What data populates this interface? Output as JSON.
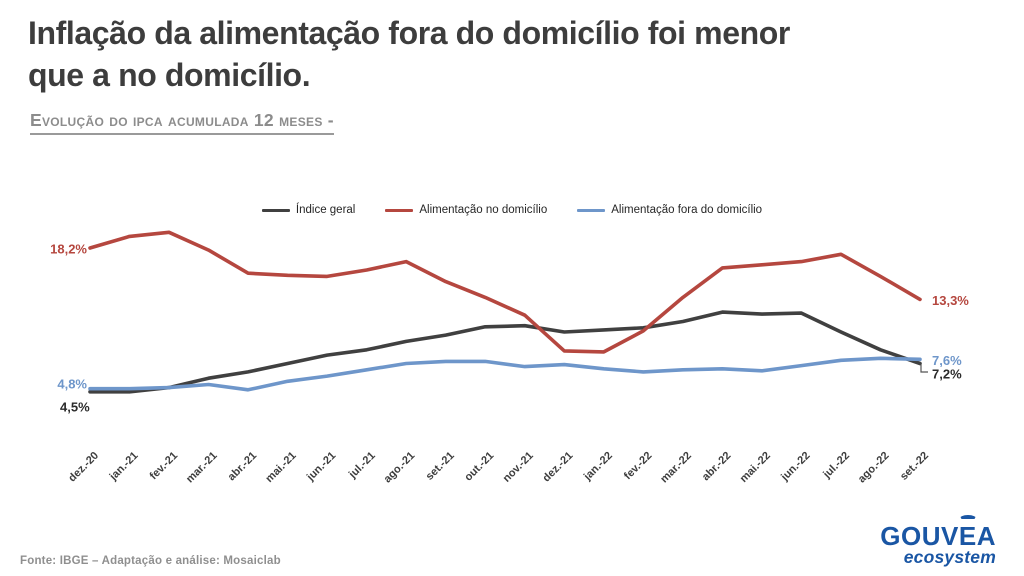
{
  "page": {
    "title_line1": "Inflação da alimentação fora do domicílio foi menor",
    "title_line2": "que a no domicílio.",
    "subtitle": "Evolução do ipca acumulada 12 meses -",
    "footer": "Fonte: IBGE – Adaptação e análise: Mosaiclab",
    "logo": {
      "part1": "GOUV",
      "letter_e": "E",
      "part2": "A",
      "tagline": "ecosystem",
      "color": "#1a56a4"
    }
  },
  "chart_data": {
    "type": "line",
    "title": "Evolução do IPCA acumulada 12 meses",
    "unit": "%",
    "grid": false,
    "axes_drawn": false,
    "legend_position": "top",
    "ylim": [
      4,
      20
    ],
    "categories": [
      "dez.-20",
      "jan.-21",
      "fev.-21",
      "mar.-21",
      "abr.-21",
      "mai.-21",
      "jun.-21",
      "jul.-21",
      "ago.-21",
      "set.-21",
      "out.-21",
      "nov.-21",
      "dez.-21",
      "jan.-22",
      "fev.-22",
      "mar.-22",
      "abr.-22",
      "mai.-22",
      "jun.-22",
      "jul.-22",
      "ago.-22",
      "set.-22"
    ],
    "series": [
      {
        "name": "Índice geral",
        "color": "#404040",
        "values": [
          4.5,
          4.5,
          4.9,
          5.8,
          6.4,
          7.2,
          8.0,
          8.5,
          9.3,
          9.9,
          10.7,
          10.8,
          10.2,
          10.4,
          10.6,
          11.2,
          12.1,
          11.9,
          12.0,
          10.2,
          8.5,
          7.2
        ],
        "first_label": "4,5%",
        "last_label": "7,2%"
      },
      {
        "name": "Alimentação no domicílio",
        "color": "#b5473f",
        "values": [
          18.2,
          19.3,
          19.7,
          18.0,
          15.8,
          15.6,
          15.5,
          16.1,
          16.9,
          15.0,
          13.5,
          11.8,
          8.4,
          8.3,
          10.3,
          13.5,
          16.3,
          16.6,
          16.9,
          17.6,
          15.5,
          13.3
        ],
        "first_label": "18,2%",
        "last_label": "13,3%"
      },
      {
        "name": "Alimentação fora do domicílio",
        "color": "#6e96ca",
        "values": [
          4.8,
          4.8,
          4.9,
          5.2,
          4.7,
          5.5,
          6.0,
          6.6,
          7.2,
          7.4,
          7.4,
          6.9,
          7.1,
          6.7,
          6.4,
          6.6,
          6.7,
          6.5,
          7.0,
          7.5,
          7.7,
          7.6
        ],
        "first_label": "4,8%",
        "last_label": "7,6%"
      }
    ]
  }
}
